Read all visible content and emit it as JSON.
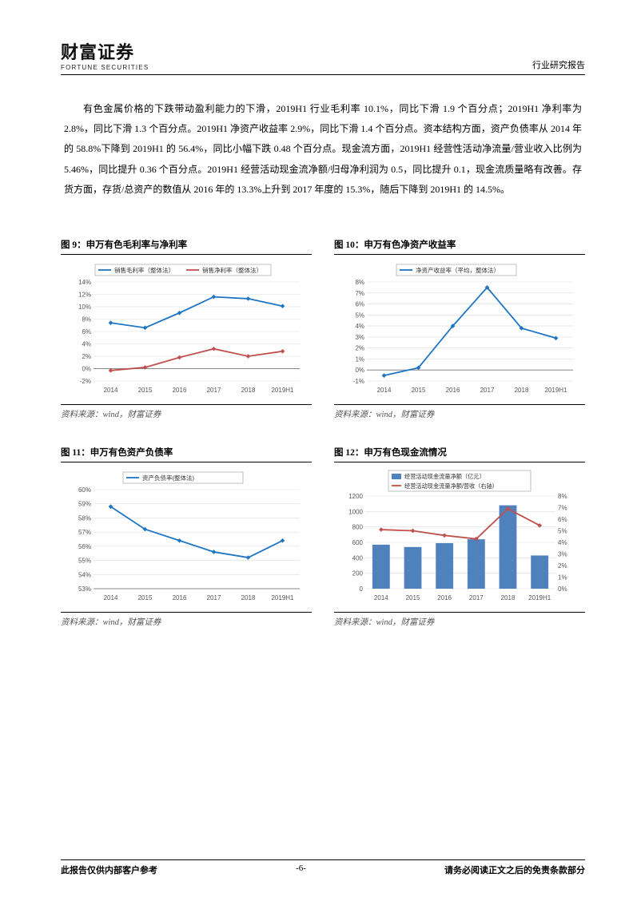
{
  "header": {
    "logo_zh": "财富证券",
    "logo_en": "FORTUNE SECURITIES",
    "doc_type": "行业研究报告"
  },
  "body_text": "有色金属价格的下跌带动盈利能力的下滑，2019H1 行业毛利率 10.1%，同比下滑 1.9 个百分点；2019H1 净利率为 2.8%，同比下滑 1.3 个百分点。2019H1 净资产收益率 2.9%，同比下滑 1.4 个百分点。资本结构方面，资产负债率从 2014 年的 58.8%下降到 2019H1 的 56.4%，同比小幅下跌 0.48 个百分点。现金流方面，2019H1 经营性活动净流量/营业收入比例为 5.46%，同比提升 0.36 个百分点。2019H1 经营活动现金流净额/归母净利润为 0.5，同比提升 0.1，现金流质量略有改善。存货方面，存货/总资产的数值从 2016 年的 13.3%上升到 2017 年度的 15.3%，随后下降到 2019H1 的 14.5%。",
  "charts": {
    "c9": {
      "title": "图 9：申万有色毛利率与净利率",
      "source": "资料来源：wind，财富证券",
      "categories": [
        "2014",
        "2015",
        "2016",
        "2017",
        "2018",
        "2019H1"
      ],
      "y_ticks": [
        -2,
        0,
        2,
        4,
        6,
        8,
        10,
        12,
        14
      ],
      "y_labels": [
        "-2%",
        "0%",
        "2%",
        "4%",
        "6%",
        "8%",
        "10%",
        "12%",
        "14%"
      ],
      "series": [
        {
          "name": "销售毛利率（整体法）",
          "color": "#1f75c4",
          "values": [
            7.4,
            6.6,
            9.0,
            11.6,
            11.3,
            10.1
          ]
        },
        {
          "name": "销售净利率（整体法）",
          "color": "#c0504d",
          "values": [
            -0.3,
            0.2,
            1.8,
            3.2,
            2.0,
            2.8
          ]
        }
      ],
      "legend_box": "#666",
      "axis_color": "#888",
      "grid_color": "#dcdcdc",
      "label_fontsize": 8
    },
    "c10": {
      "title": "图 10：申万有色净资产收益率",
      "source": "资料来源：wind，财富证券",
      "categories": [
        "2014",
        "2015",
        "2016",
        "2017",
        "2018",
        "2019H1"
      ],
      "y_ticks": [
        -1,
        0,
        1,
        2,
        3,
        4,
        5,
        6,
        7,
        8
      ],
      "y_labels": [
        "-1%",
        "0%",
        "1%",
        "2%",
        "3%",
        "4%",
        "5%",
        "6%",
        "7%",
        "8%"
      ],
      "series": [
        {
          "name": "净资产收益率（平均，整体法）",
          "color": "#1f75c4",
          "values": [
            -0.5,
            0.2,
            4.0,
            7.5,
            3.8,
            2.9
          ]
        }
      ],
      "axis_color": "#888",
      "grid_color": "#dcdcdc",
      "label_fontsize": 8
    },
    "c11": {
      "title": "图 11：申万有色资产负债率",
      "source": "资料来源：wind，财富证券",
      "categories": [
        "2014",
        "2015",
        "2016",
        "2017",
        "2018",
        "2019H1"
      ],
      "y_ticks": [
        53,
        54,
        55,
        56,
        57,
        58,
        59,
        60
      ],
      "y_labels": [
        "53%",
        "54%",
        "55%",
        "56%",
        "57%",
        "58%",
        "59%",
        "60%"
      ],
      "series": [
        {
          "name": "资产负债率(整体法)",
          "color": "#1f75c4",
          "values": [
            58.8,
            57.2,
            56.4,
            55.6,
            55.2,
            56.4
          ]
        }
      ],
      "axis_color": "#888",
      "grid_color": "#dcdcdc",
      "label_fontsize": 8
    },
    "c12": {
      "title": "图 12：申万有色现金流情况",
      "source": "资料来源：wind，财富证券",
      "categories": [
        "2014",
        "2015",
        "2016",
        "2017",
        "2018",
        "2019H1"
      ],
      "y_left_ticks": [
        0,
        200,
        400,
        600,
        800,
        1000,
        1200
      ],
      "y_right_ticks": [
        0,
        1,
        2,
        3,
        4,
        5,
        6,
        7,
        8
      ],
      "y_right_labels": [
        "0%",
        "1%",
        "2%",
        "3%",
        "4%",
        "5%",
        "6%",
        "7%",
        "8%"
      ],
      "bar": {
        "name": "经营活动现金流量净额（亿元）",
        "color": "#4f81bd",
        "values": [
          570,
          540,
          590,
          640,
          1080,
          430
        ]
      },
      "line": {
        "name": "经营活动现金流量净额/营收（右轴）",
        "color": "#c0504d",
        "values": [
          5.1,
          5.0,
          4.6,
          4.3,
          6.9,
          5.46
        ]
      },
      "axis_color": "#888",
      "grid_color": "#dcdcdc",
      "label_fontsize": 8,
      "bar_width": 0.55
    }
  },
  "footer": {
    "left": "此报告仅供内部客户参考",
    "center": "-6-",
    "right": "请务必阅读正文之后的免责条款部分"
  }
}
